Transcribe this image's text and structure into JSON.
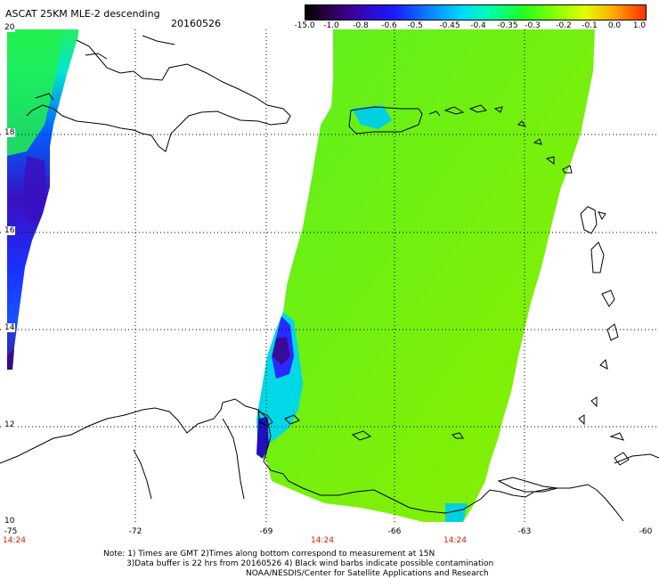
{
  "header": {
    "title": "ASCAT 25KM MLE-2 descending",
    "date": "20160526"
  },
  "colorbar": {
    "labels": [
      "-15.0",
      "-1.0",
      "-0.8",
      "-0.6",
      "-0.5",
      "-0.45",
      "-0.4",
      "-0.35",
      "-0.3",
      "-0.2",
      "-0.1",
      "0.0",
      "1.0"
    ]
  },
  "axes": {
    "lat_labels": [
      "20",
      "18",
      "16",
      "14",
      "12",
      "10"
    ],
    "lon_labels": [
      "-75",
      "-72",
      "-69",
      "-66",
      "-63",
      "-60"
    ],
    "time_labels": [
      "14:24",
      "14:24",
      "14:24"
    ]
  },
  "notes": {
    "line1": "Note: 1) Times are GMT 2)Times along bottom correspond to measurement at 15N",
    "line2": "3)Data buffer is 22 hrs from 20160526 4) Black wind barbs indicate possible contamination",
    "line3": "NOAA/NESDIS/Center for Satellite Applications and Research"
  },
  "colors": {
    "swath_green": "#7cf000",
    "coast": "#000000",
    "time_label": "#cc2200"
  }
}
